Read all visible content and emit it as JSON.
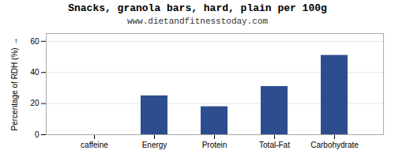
{
  "chart_data": {
    "type": "bar",
    "title": "Snacks, granola bars, hard, plain per 100g",
    "subtitle": "www.dietandfitnesstoday.com",
    "categories": [
      "caffeine",
      "Energy",
      "Protein",
      "Total-Fat",
      "Carbohydrate"
    ],
    "values": [
      0,
      25,
      18,
      31,
      51
    ],
    "color": "#2e4d8e",
    "ylabel": "Percentage of RDH (%)",
    "ylim": [
      0,
      65
    ],
    "yticks": [
      0,
      20,
      40,
      60
    ],
    "grid": true
  }
}
